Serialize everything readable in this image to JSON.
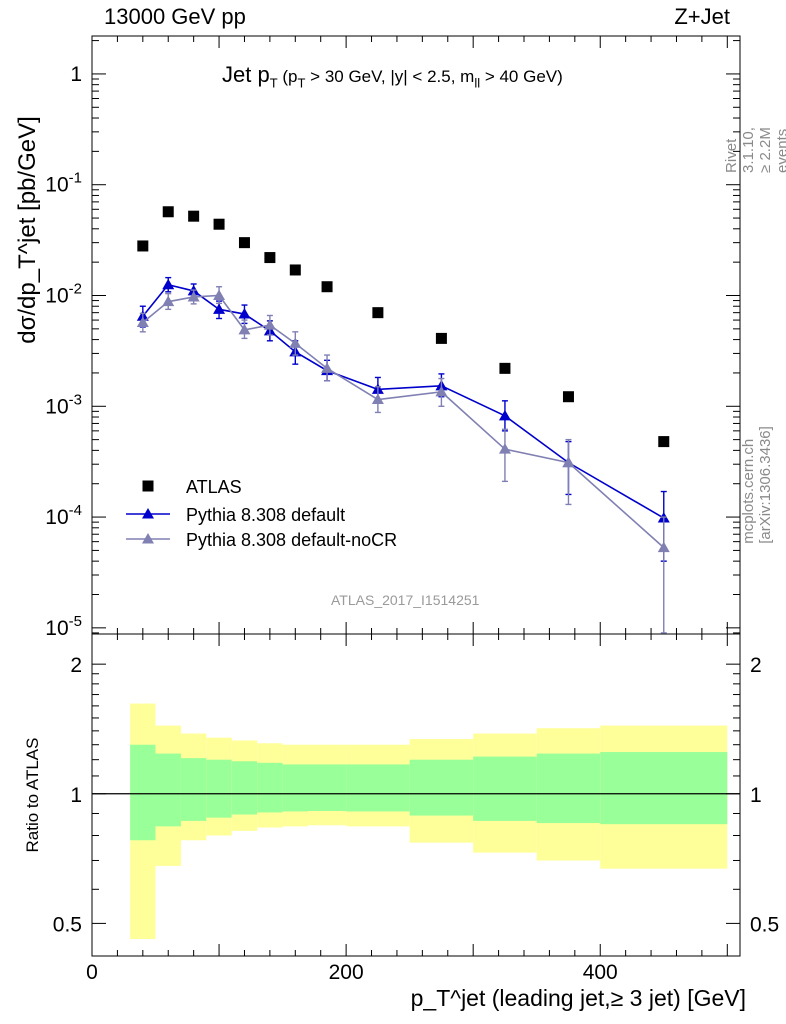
{
  "header": {
    "left": "13000 GeV pp",
    "right": "Z+Jet"
  },
  "title": {
    "main": "Jet p",
    "main_sub": "T",
    "cuts_a": " (p",
    "cuts_sub_a": "T",
    "cuts_b": " > 30 GeV, |y| < 2.5, m",
    "cuts_sub_b": "ll",
    "cuts_c": " > 40 GeV)"
  },
  "side_text": {
    "rivet": "Rivet 3.1.10, ≥ 2.2M events",
    "mcplots": "mcplots.cern.ch [arXiv:1306.3436]"
  },
  "watermark": "ATLAS_2017_I1514251",
  "colors": {
    "atlas": "#000000",
    "default": "#0000cc",
    "nocr": "#8080b3",
    "band_inner": "#99ff99",
    "band_outer": "#ffff99"
  },
  "chart_data": [
    {
      "type": "scatter",
      "log_y": true,
      "ylabel": "dσ/dp_T^jet [pb/GeV]",
      "xlim": [
        0,
        510
      ],
      "ylim": [
        8.8e-06,
        2.2
      ],
      "y_ticks": [
        "10^-5",
        "10^-4",
        "10^-3",
        "10^-2",
        "10^-1",
        "1"
      ],
      "legend_position": "lower-left",
      "series": [
        {
          "name": "ATLAS",
          "marker": "square",
          "x": [
            40,
            60,
            80,
            100,
            120,
            140,
            160,
            185,
            225,
            275,
            325,
            375,
            450
          ],
          "y": [
            0.028,
            0.057,
            0.052,
            0.044,
            0.03,
            0.022,
            0.017,
            0.012,
            0.007,
            0.0041,
            0.0022,
            0.00122,
            0.00048
          ]
        },
        {
          "name": "Pythia 8.308 default",
          "marker": "triangle",
          "line": true,
          "x": [
            40,
            60,
            80,
            100,
            120,
            140,
            160,
            185,
            225,
            275,
            325,
            375,
            450
          ],
          "y": [
            0.0065,
            0.0125,
            0.011,
            0.0075,
            0.0068,
            0.0048,
            0.0031,
            0.0021,
            0.00142,
            0.00153,
            0.00082,
            0.00031,
            9.8e-05
          ],
          "err_lo": [
            0.0052,
            0.0108,
            0.0095,
            0.0062,
            0.0056,
            0.0039,
            0.0024,
            0.0017,
            0.00115,
            0.00122,
            0.0006,
            0.00016,
            4e-05
          ],
          "err_hi": [
            0.008,
            0.0145,
            0.0127,
            0.0089,
            0.0082,
            0.0059,
            0.0039,
            0.0026,
            0.00182,
            0.00196,
            0.00112,
            0.00048,
            0.00017
          ]
        },
        {
          "name": "Pythia 8.308 default-noCR",
          "marker": "triangle",
          "line": true,
          "x": [
            40,
            60,
            80,
            100,
            120,
            140,
            160,
            185,
            225,
            275,
            325,
            375,
            450
          ],
          "y": [
            0.0057,
            0.0088,
            0.0097,
            0.01,
            0.0049,
            0.0054,
            0.0037,
            0.0022,
            0.00115,
            0.00135,
            0.00041,
            0.00031,
            5.3e-05
          ],
          "err_lo": [
            0.0047,
            0.0075,
            0.0084,
            0.0085,
            0.0041,
            0.0044,
            0.0029,
            0.0017,
            0.00088,
            0.001,
            0.00021,
            0.00013,
            9e-06
          ],
          "err_hi": [
            0.0069,
            0.0104,
            0.0112,
            0.012,
            0.006,
            0.0066,
            0.0047,
            0.0029,
            0.0015,
            0.00178,
            0.00062,
            0.0005,
            0.0001
          ]
        }
      ]
    },
    {
      "type": "area",
      "xlabel": "p_T^jet (leading jet,≥ 3 jet) [GeV]",
      "ylabel": "Ratio to ATLAS",
      "xlim": [
        0,
        510
      ],
      "ylim": [
        0.42,
        2.35
      ],
      "x_ticks": [
        "0",
        "200",
        "400"
      ],
      "y_ticks": [
        "0.5",
        "1",
        "2"
      ],
      "bin_edges": [
        30,
        50,
        70,
        90,
        110,
        130,
        150,
        170,
        200,
        250,
        300,
        350,
        400,
        500
      ],
      "inner_band": {
        "lo": [
          0.78,
          0.84,
          0.865,
          0.88,
          0.895,
          0.905,
          0.91,
          0.912,
          0.91,
          0.89,
          0.865,
          0.855,
          0.85
        ],
        "hi": [
          1.3,
          1.24,
          1.21,
          1.2,
          1.19,
          1.18,
          1.17,
          1.17,
          1.17,
          1.2,
          1.22,
          1.24,
          1.25
        ]
      },
      "outer_band": {
        "lo": [
          0.46,
          0.68,
          0.78,
          0.8,
          0.82,
          0.835,
          0.84,
          0.845,
          0.84,
          0.77,
          0.73,
          0.7,
          0.67
        ],
        "hi": [
          1.62,
          1.44,
          1.38,
          1.35,
          1.33,
          1.31,
          1.3,
          1.3,
          1.3,
          1.34,
          1.38,
          1.42,
          1.44
        ]
      },
      "reference_line": 1
    }
  ]
}
